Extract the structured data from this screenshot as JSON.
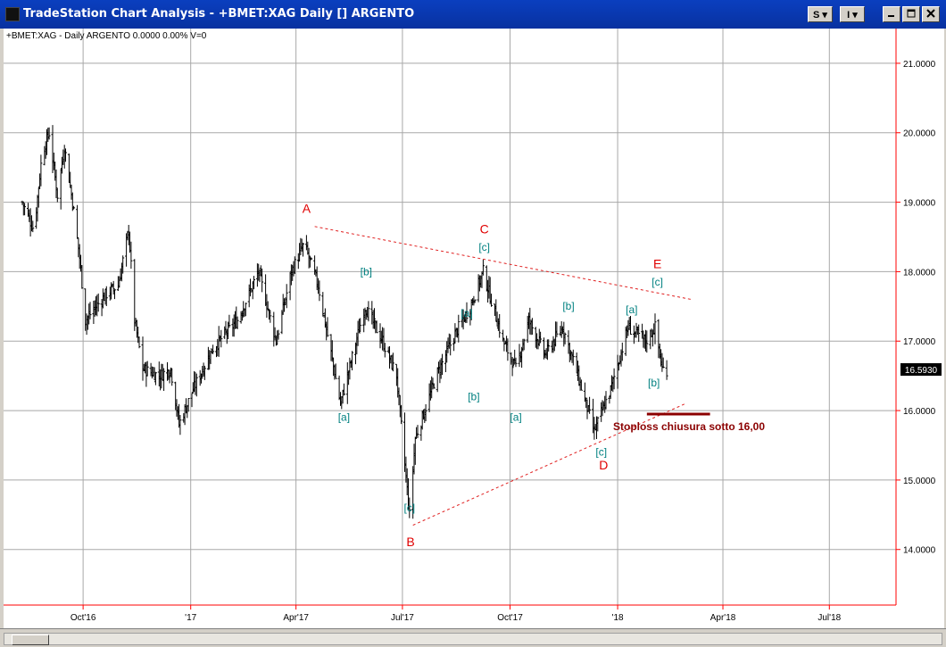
{
  "window": {
    "title": "TradeStation Chart Analysis - +BMET:XAG Daily [] ARGENTO",
    "controls": [
      "S",
      "I"
    ]
  },
  "chart_header": "+BMET:XAG - Daily  ARGENTO  0.0000  0.00%  V=0",
  "colors": {
    "grid": "#a8a8a8",
    "bars": "#000000",
    "trendline": "#e02020",
    "wave_major": "#e00000",
    "wave_minor": "#008080",
    "stoploss": "#8b0000",
    "axis": "#ff0000"
  },
  "chart_data": {
    "type": "ohlc",
    "symbol": "+BMET:XAG",
    "interval": "Daily",
    "ylim": [
      13.2,
      21.5
    ],
    "y_ticks": [
      "21.0000",
      "20.0000",
      "19.0000",
      "18.0000",
      "17.0000",
      "16.0000",
      "15.0000",
      "14.0000"
    ],
    "x_ticks": [
      {
        "label": "Oct'16",
        "date": "2016-10-01"
      },
      {
        "label": "'17",
        "date": "2017-01-01"
      },
      {
        "label": "Apr'17",
        "date": "2017-04-01"
      },
      {
        "label": "Jul'17",
        "date": "2017-07-01"
      },
      {
        "label": "Oct'17",
        "date": "2017-10-01"
      },
      {
        "label": "'18",
        "date": "2018-01-01"
      },
      {
        "label": "Apr'18",
        "date": "2018-04-01"
      },
      {
        "label": "Jul'18",
        "date": "2018-07-01"
      }
    ],
    "last_price": "16.5930",
    "price_path": [
      [
        "2016-08-10",
        19.0
      ],
      [
        "2016-08-20",
        18.6
      ],
      [
        "2016-08-27",
        19.7
      ],
      [
        "2016-09-02",
        20.0
      ],
      [
        "2016-09-09",
        19.1
      ],
      [
        "2016-09-15",
        19.8
      ],
      [
        "2016-09-22",
        19.0
      ],
      [
        "2016-09-28",
        18.2
      ],
      [
        "2016-10-03",
        17.3
      ],
      [
        "2016-10-12",
        17.5
      ],
      [
        "2016-10-22",
        17.7
      ],
      [
        "2016-10-31",
        17.8
      ],
      [
        "2016-11-09",
        18.6
      ],
      [
        "2016-11-14",
        17.3
      ],
      [
        "2016-11-21",
        16.6
      ],
      [
        "2016-12-05",
        16.5
      ],
      [
        "2016-12-15",
        16.6
      ],
      [
        "2016-12-22",
        15.8
      ],
      [
        "2017-01-03",
        16.3
      ],
      [
        "2017-01-20",
        16.9
      ],
      [
        "2017-02-10",
        17.3
      ],
      [
        "2017-02-28",
        18.0
      ],
      [
        "2017-03-15",
        17.0
      ],
      [
        "2017-03-28",
        18.0
      ],
      [
        "2017-04-08",
        18.4
      ],
      [
        "2017-04-20",
        17.8
      ],
      [
        "2017-05-09",
        16.1
      ],
      [
        "2017-05-30",
        17.5
      ],
      [
        "2017-06-14",
        17.0
      ],
      [
        "2017-06-26",
        16.5
      ],
      [
        "2017-07-07",
        14.5
      ],
      [
        "2017-07-12",
        15.6
      ],
      [
        "2017-07-30",
        16.5
      ],
      [
        "2017-08-15",
        17.1
      ],
      [
        "2017-08-28",
        17.5
      ],
      [
        "2017-09-08",
        18.0
      ],
      [
        "2017-09-25",
        17.0
      ],
      [
        "2017-10-06",
        16.6
      ],
      [
        "2017-10-17",
        17.3
      ],
      [
        "2017-10-31",
        16.8
      ],
      [
        "2017-11-15",
        17.2
      ],
      [
        "2017-11-28",
        16.5
      ],
      [
        "2017-12-12",
        15.7
      ],
      [
        "2017-12-26",
        16.3
      ],
      [
        "2018-01-10",
        17.2
      ],
      [
        "2018-01-25",
        17.0
      ],
      [
        "2018-02-02",
        17.2
      ],
      [
        "2018-02-08",
        16.6
      ],
      [
        "2018-02-12",
        16.59
      ]
    ],
    "trendlines": [
      {
        "name": "upper",
        "from": [
          "2017-04-17",
          18.65
        ],
        "to": [
          "2018-03-05",
          17.6
        ]
      },
      {
        "name": "lower",
        "from": [
          "2017-07-10",
          14.35
        ],
        "to": [
          "2018-02-28",
          16.1
        ]
      }
    ],
    "stoploss_line": {
      "price": 15.95,
      "from": "2018-01-26",
      "to": "2018-03-21"
    },
    "annotations": [
      {
        "text": "A",
        "date": "2017-04-10",
        "price": 18.85,
        "style": "major"
      },
      {
        "text": "B",
        "date": "2017-07-08",
        "price": 14.05,
        "style": "major"
      },
      {
        "text": "C",
        "date": "2017-09-09",
        "price": 18.55,
        "style": "major"
      },
      {
        "text": "D",
        "date": "2017-12-20",
        "price": 15.15,
        "style": "major"
      },
      {
        "text": "E",
        "date": "2018-02-04",
        "price": 18.05,
        "style": "major"
      },
      {
        "text": "[b]",
        "date": "2017-05-31",
        "price": 17.95,
        "style": "minor"
      },
      {
        "text": "[a]",
        "date": "2017-05-12",
        "price": 15.85,
        "style": "minor"
      },
      {
        "text": "[c]",
        "date": "2017-07-07",
        "price": 14.55,
        "style": "minor"
      },
      {
        "text": "[a]",
        "date": "2017-08-25",
        "price": 17.35,
        "style": "minor"
      },
      {
        "text": "[b]",
        "date": "2017-08-31",
        "price": 16.15,
        "style": "minor"
      },
      {
        "text": "[c]",
        "date": "2017-09-09",
        "price": 18.3,
        "style": "minor"
      },
      {
        "text": "[a]",
        "date": "2017-10-06",
        "price": 15.85,
        "style": "minor"
      },
      {
        "text": "[b]",
        "date": "2017-11-20",
        "price": 17.45,
        "style": "minor"
      },
      {
        "text": "[c]",
        "date": "2017-12-18",
        "price": 15.35,
        "style": "minor"
      },
      {
        "text": "[a]",
        "date": "2018-01-13",
        "price": 17.4,
        "style": "minor"
      },
      {
        "text": "[c]",
        "date": "2018-02-04",
        "price": 17.8,
        "style": "minor"
      },
      {
        "text": "[b]",
        "date": "2018-02-01",
        "price": 16.35,
        "style": "minor"
      }
    ],
    "stoploss_text": {
      "text": "Stoploss  chiusura sotto 16,00",
      "date": "2018-03-03",
      "price": 15.72
    }
  }
}
